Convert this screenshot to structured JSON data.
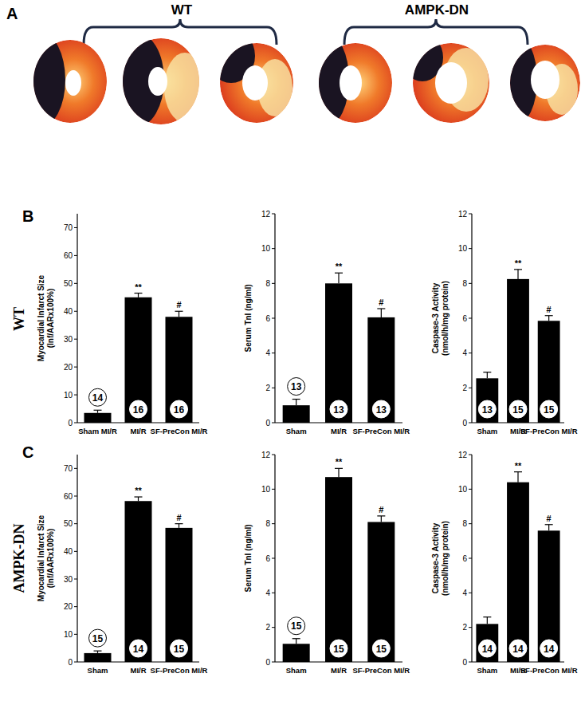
{
  "figure": {
    "panel_labels": [
      "A",
      "B",
      "C"
    ],
    "group_labels": [
      "WT",
      "AMPK-DN"
    ],
    "row_labels": [
      "WT",
      "AMPK-DN"
    ]
  },
  "chart_data": [
    {
      "type": "bar",
      "ylabel": [
        "Myocardial Infarct Size",
        "(Inf/AARx100%)"
      ],
      "categories": [
        "Sham MI/R",
        "MI/R",
        "SF-PreCon MI/R"
      ],
      "values": [
        3.5,
        45,
        38
      ],
      "errors": [
        1,
        1.5,
        2
      ],
      "n": [
        14,
        16,
        16
      ],
      "significance": [
        null,
        "**",
        "#"
      ],
      "color": "#000000",
      "ylim": [
        0,
        75
      ],
      "yticks": [
        0,
        10,
        20,
        30,
        40,
        50,
        60,
        70
      ]
    },
    {
      "type": "bar",
      "ylabel": [
        "Serum TnI (ng/ml)"
      ],
      "categories": [
        "Sham",
        "MI/R",
        "SF-PreCon MI/R"
      ],
      "values": [
        1.0,
        8.0,
        6.05
      ],
      "errors": [
        0.35,
        0.6,
        0.5
      ],
      "n": [
        13,
        13,
        13
      ],
      "significance": [
        null,
        "**",
        "#"
      ],
      "color": "#000000",
      "ylim": [
        0,
        12
      ],
      "yticks": [
        0,
        2,
        4,
        6,
        8,
        10,
        12
      ]
    },
    {
      "type": "bar",
      "ylabel": [
        "Caspase-3 Activity",
        "(nmol/h/mg protein)"
      ],
      "categories": [
        "Sham",
        "MI/R",
        "SF-PreCon MI/R"
      ],
      "values": [
        2.55,
        8.25,
        5.85
      ],
      "errors": [
        0.35,
        0.55,
        0.3
      ],
      "n": [
        13,
        15,
        15
      ],
      "significance": [
        null,
        "**",
        "#"
      ],
      "color": "#000000",
      "ylim": [
        0,
        12
      ],
      "yticks": [
        0,
        2,
        4,
        6,
        8,
        10,
        12
      ]
    },
    {
      "type": "bar",
      "ylabel": [
        "Myocardial Infarct Size",
        "(Inf/AARx100%)"
      ],
      "categories": [
        "Sham",
        "MI/R",
        "SF-PreCon MI/R"
      ],
      "values": [
        3.2,
        58.2,
        48.5
      ],
      "errors": [
        0.8,
        1.5,
        1.5
      ],
      "n": [
        15,
        14,
        15
      ],
      "significance": [
        null,
        "**",
        "#"
      ],
      "color": "#000000",
      "ylim": [
        0,
        75
      ],
      "yticks": [
        0,
        10,
        20,
        30,
        40,
        50,
        60,
        70
      ]
    },
    {
      "type": "bar",
      "ylabel": [
        "Serum TnI (ng/ml)"
      ],
      "categories": [
        "Sham",
        "MI/R",
        "SF-PreCon MI/R"
      ],
      "values": [
        1.05,
        10.7,
        8.1
      ],
      "errors": [
        0.3,
        0.5,
        0.35
      ],
      "n": [
        15,
        15,
        15
      ],
      "significance": [
        null,
        "**",
        "#"
      ],
      "color": "#000000",
      "ylim": [
        0,
        12
      ],
      "yticks": [
        0,
        2,
        4,
        6,
        8,
        10,
        12
      ]
    },
    {
      "type": "bar",
      "ylabel": [
        "Caspase-3 Activity",
        "(nmol/h/mg protein)"
      ],
      "categories": [
        "Sham",
        "MI/R",
        "SF-PreCon MI/R"
      ],
      "values": [
        2.2,
        10.4,
        7.6
      ],
      "errors": [
        0.4,
        0.6,
        0.35
      ],
      "n": [
        14,
        14,
        14
      ],
      "significance": [
        null,
        "**",
        "#"
      ],
      "color": "#000000",
      "ylim": [
        0,
        12
      ],
      "yticks": [
        0,
        2,
        4,
        6,
        8,
        10,
        12
      ]
    }
  ]
}
